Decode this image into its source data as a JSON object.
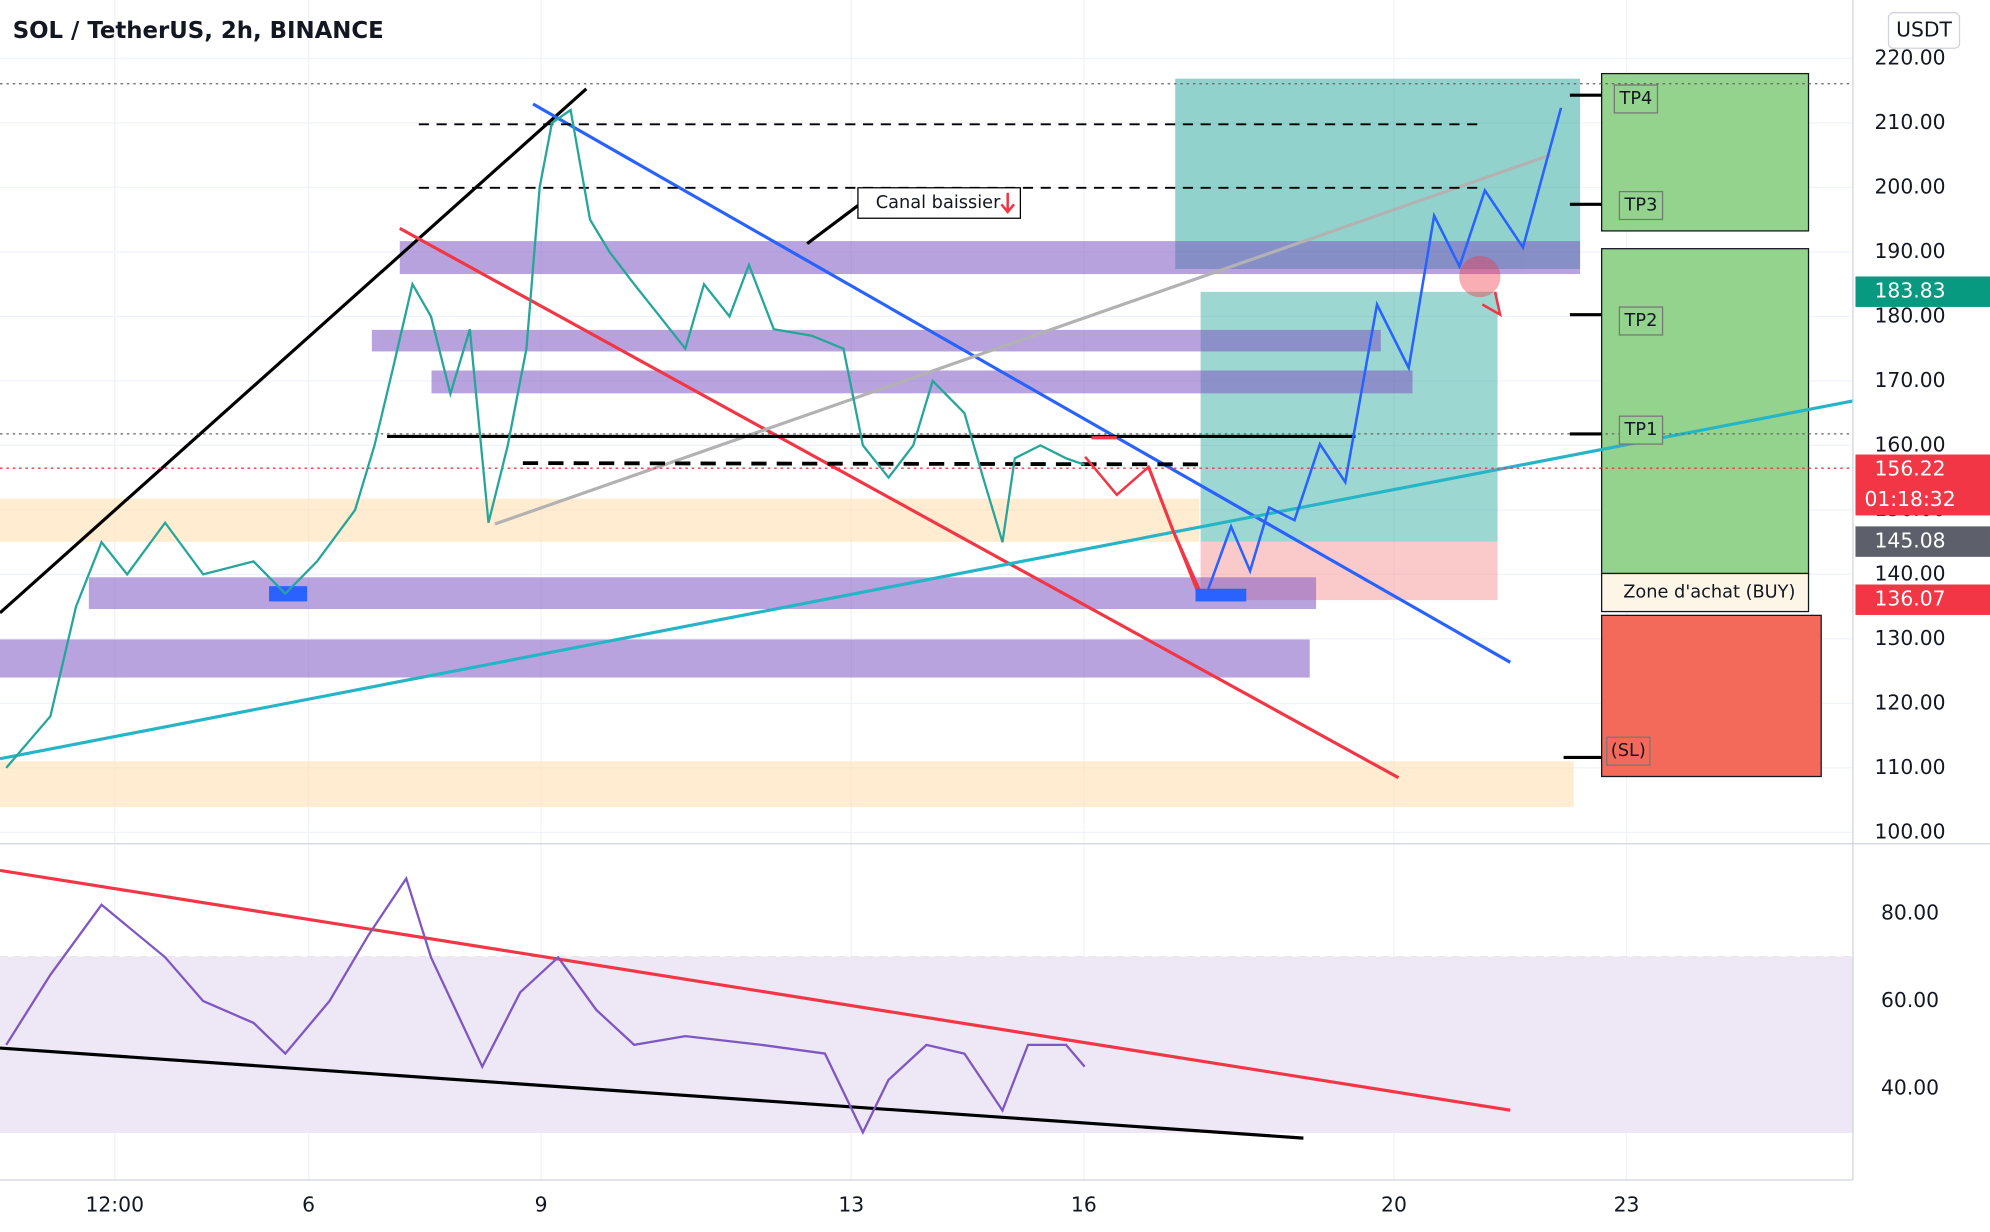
{
  "header": {
    "title": "SOL / TetherUS, 2h, BINANCE",
    "currency": "USDT"
  },
  "annotations": [
    "Canal baissier",
    "TP4",
    "TP3",
    "TP2",
    "TP1",
    "Zone d'achat (BUY)",
    "(SL)"
  ],
  "chart_data": [
    {
      "type": "line",
      "color": "#26a69a",
      "x": [
        2.1,
        2.67,
        3.0,
        3.33,
        3.66,
        4.15,
        4.64,
        5.29,
        5.7,
        6.11,
        6.6,
        6.85,
        7.09,
        7.34,
        7.58,
        7.83,
        8.08,
        8.32,
        8.57,
        8.81,
        8.98,
        9.14,
        9.38,
        9.63,
        9.88,
        10.2,
        10.53,
        10.86,
        11.1,
        11.43,
        11.68,
        12.0,
        12.49,
        12.9,
        13.15,
        13.48,
        13.8,
        14.05,
        14.46,
        14.7,
        14.95,
        15.11,
        15.44,
        15.77,
        16.01
      ],
      "values": [
        110,
        118,
        135,
        145,
        140,
        148,
        140,
        142,
        137,
        142,
        150,
        160,
        172,
        185,
        180,
        168,
        178,
        148,
        160,
        175,
        200,
        210,
        212,
        195,
        190,
        185,
        180,
        175,
        185,
        180,
        188,
        178,
        177,
        175,
        160,
        155,
        160,
        170,
        165,
        155,
        145,
        158,
        160,
        158,
        157
      ],
      "xlim": [
        2.02,
        25.92
      ],
      "xticks": [
        {
          "value": 3.5,
          "label": "12:00"
        },
        6,
        9,
        13,
        16,
        20,
        23
      ],
      "ylim": [
        98.23,
        229.06
      ],
      "yticks": [
        {
          "value": 100,
          "label": "100.00"
        },
        {
          "value": 110,
          "label": "110.00"
        },
        {
          "value": 120,
          "label": "120.00"
        },
        {
          "value": 130,
          "label": "130.00"
        },
        {
          "value": 140,
          "label": "140.00"
        },
        {
          "value": 150,
          "label": "150.00"
        },
        {
          "value": 160,
          "label": "160.00"
        },
        {
          "value": 170,
          "label": "170.00"
        },
        {
          "value": 180,
          "label": "180.00"
        },
        {
          "value": 190,
          "label": "190.00"
        },
        {
          "value": 200,
          "label": "200.00"
        },
        {
          "value": 210,
          "label": "210.00"
        },
        {
          "value": 220,
          "label": "220.00"
        }
      ],
      "price_labels": [
        {
          "value": 183.83,
          "color": "#089981"
        },
        {
          "value": 156.22,
          "color": "#f23645"
        },
        {
          "value": 145.08,
          "color": "#5d606b"
        },
        {
          "value": 136.07,
          "color": "#f23645"
        }
      ],
      "countdown": "01:18:32",
      "grid": true
    },
    {
      "type": "line",
      "color": "#7e57c2",
      "x": [
        2.1,
        2.67,
        3.33,
        4.15,
        4.64,
        5.29,
        5.7,
        6.27,
        6.77,
        7.26,
        7.58,
        8.24,
        8.73,
        9.22,
        9.71,
        10.2,
        10.86,
        11.84,
        12.66,
        13.15,
        13.48,
        13.97,
        14.46,
        14.95,
        15.28,
        15.77,
        16.01
      ],
      "values": [
        50,
        66,
        82,
        70,
        60,
        55,
        48,
        60,
        75,
        88,
        70,
        45,
        62,
        70,
        58,
        50,
        52,
        50,
        48,
        30,
        42,
        50,
        48,
        35,
        50,
        50,
        45
      ],
      "xlim": [
        2.02,
        25.92
      ],
      "ylim": [
        19.13,
        95.94
      ],
      "yticks": [
        {
          "value": 40,
          "label": "40.00"
        },
        {
          "value": 60,
          "label": "60.00"
        },
        {
          "value": 80,
          "label": "80.00"
        }
      ],
      "levels": [
        30,
        50,
        70
      ]
    }
  ]
}
